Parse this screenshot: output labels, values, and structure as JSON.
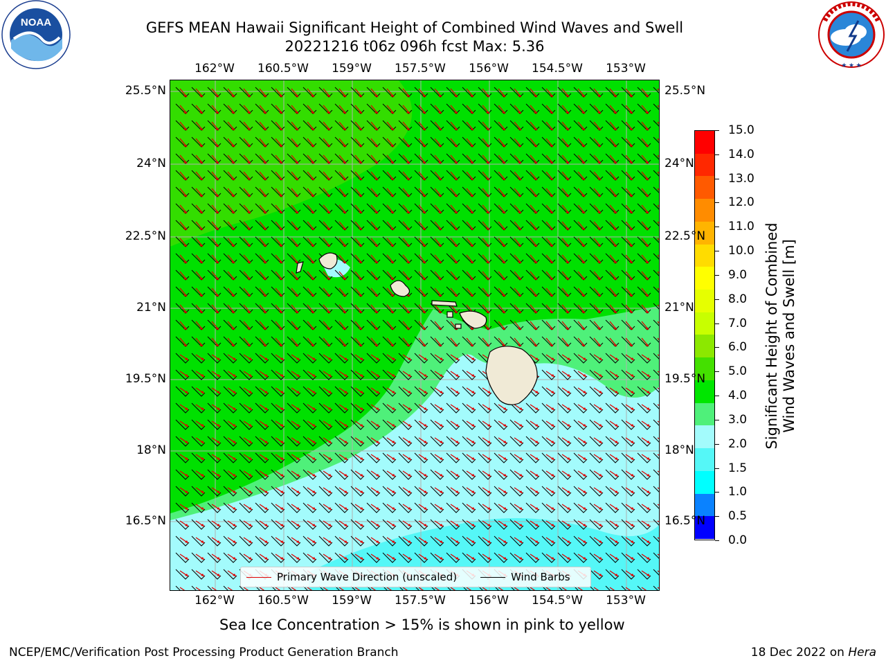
{
  "header": {
    "title_line1": "GEFS MEAN Hawaii Significant Height of Combined Wind Waves and Swell",
    "title_line2": "20221216 t06z 096h fcst   Max: 5.36"
  },
  "logos": {
    "noaa": {
      "text": "NOAA",
      "ring_text": "NATIONAL OCEANIC AND ATMOSPHERIC ADMINISTRATION · U.S. DEPARTMENT OF COMMERCE"
    },
    "nws": {
      "ring_text": "NATIONAL WEATHER SERVICE"
    }
  },
  "map": {
    "lon_labels": [
      "162°W",
      "160.5°W",
      "159°W",
      "157.5°W",
      "156°W",
      "154.5°W",
      "153°W"
    ],
    "lat_labels": [
      "25.5°N",
      "24°N",
      "22.5°N",
      "21°N",
      "19.5°N",
      "18°N",
      "16.5°N"
    ],
    "legend": {
      "wave_label": "Primary Wave Direction (unscaled)",
      "barb_label": "Wind Barbs",
      "wave_color": "#e00000",
      "barb_color": "#000000"
    },
    "colors": {
      "band_5_6": "#33dd00",
      "band_4_5": "#00e000",
      "band_3_4": "#4ff07a",
      "band_2_3": "#a3fbfc",
      "band_1_5_2": "#55f7f7",
      "land": "#f0ead6",
      "grid": "#b0b0b0"
    }
  },
  "colorbar": {
    "title_line1": "Significant Height of Combined",
    "title_line2": "Wind Waves and Swell [m]",
    "labels": [
      "15.0",
      "14.0",
      "13.0",
      "12.0",
      "11.0",
      "10.0",
      "9.0",
      "8.0",
      "7.0",
      "6.0",
      "5.0",
      "4.0",
      "3.0",
      "2.0",
      "1.5",
      "1.0",
      "0.5",
      "0.0"
    ],
    "segments_top_to_bottom": [
      "#ff0000",
      "#ff2800",
      "#ff5a00",
      "#ff8c00",
      "#ffb400",
      "#ffdc00",
      "#ffff00",
      "#e6ff00",
      "#c8ff00",
      "#8ce800",
      "#44e000",
      "#00e600",
      "#4ff07a",
      "#a3fbfc",
      "#55f7f7",
      "#00ffff",
      "#0a82ff",
      "#0000ff"
    ]
  },
  "footer": {
    "note": "Sea Ice Concentration > 15% is shown in pink to yellow",
    "left": "NCEP/EMC/Verification Post Processing Product Generation Branch",
    "right_prefix": "18 Dec 2022 on ",
    "right_host": "Hera"
  }
}
